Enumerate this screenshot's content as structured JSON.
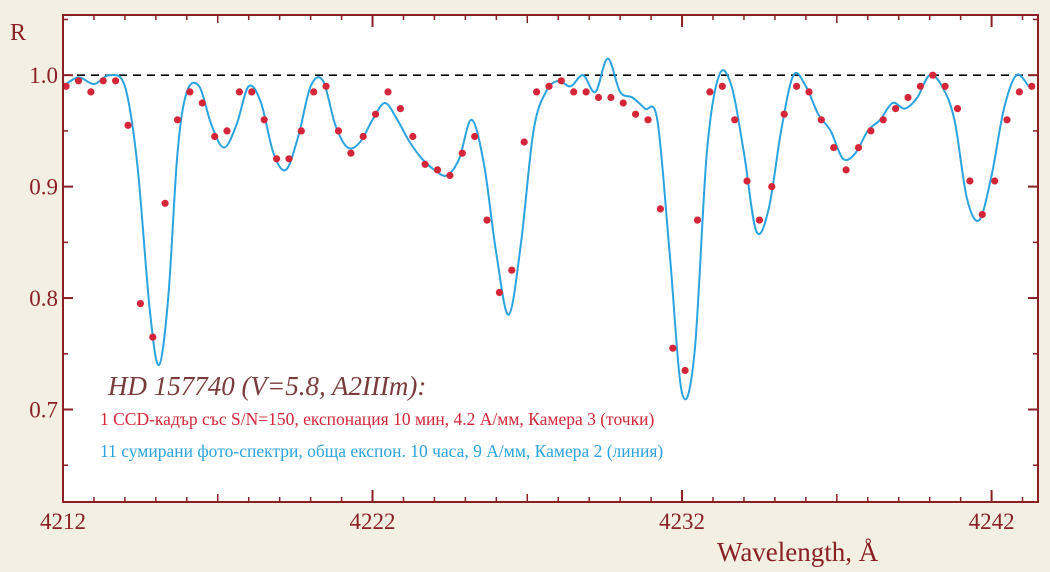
{
  "chart_data": {
    "type": "line",
    "title": "HD 157740 (V=5.8, A2IIIm):",
    "ylabel": "R",
    "xlabel": "Wavelength, Å",
    "xlim": [
      4212,
      4243.5
    ],
    "ylim": [
      0.617,
      1.054
    ],
    "reference_line": 1.0,
    "x_ticks": [
      4212,
      4222,
      4232,
      4242
    ],
    "x_tick_labels": [
      "4212",
      "4222",
      "4232",
      "4242"
    ],
    "y_ticks": [
      0.7,
      0.8,
      0.9,
      1.0
    ],
    "y_tick_labels": [
      "0.7",
      "0.8",
      "0.9",
      "1.0"
    ],
    "grid": false,
    "legend_position": "bottom-left",
    "series": [
      {
        "name": "1 CCD-кадър със S/N=150, експонация 10 мин, 4.2 А/мм, Камера 3 (точки)",
        "style": "points",
        "color": "#d42638",
        "x": [
          4212.1,
          4212.5,
          4212.9,
          4213.3,
          4213.7,
          4214.1,
          4214.5,
          4214.9,
          4215.3,
          4215.7,
          4216.1,
          4216.5,
          4216.9,
          4217.3,
          4217.7,
          4218.1,
          4218.5,
          4218.9,
          4219.3,
          4219.7,
          4220.1,
          4220.5,
          4220.9,
          4221.3,
          4221.7,
          4222.1,
          4222.5,
          4222.9,
          4223.3,
          4223.7,
          4224.1,
          4224.5,
          4224.9,
          4225.3,
          4225.7,
          4226.1,
          4226.5,
          4226.9,
          4227.3,
          4227.7,
          4228.1,
          4228.5,
          4228.9,
          4229.3,
          4229.7,
          4230.1,
          4230.5,
          4230.9,
          4231.3,
          4231.7,
          4232.1,
          4232.5,
          4232.9,
          4233.3,
          4233.7,
          4234.1,
          4234.5,
          4234.9,
          4235.3,
          4235.7,
          4236.1,
          4236.5,
          4236.9,
          4237.3,
          4237.7,
          4238.1,
          4238.5,
          4238.9,
          4239.3,
          4239.7,
          4240.1,
          4240.5,
          4240.9,
          4241.3,
          4241.7,
          4242.1,
          4242.5,
          4242.9,
          4243.3
        ],
        "y": [
          0.99,
          0.995,
          0.985,
          0.995,
          0.995,
          0.955,
          0.795,
          0.765,
          0.885,
          0.96,
          0.985,
          0.975,
          0.945,
          0.95,
          0.985,
          0.985,
          0.96,
          0.925,
          0.925,
          0.95,
          0.985,
          0.99,
          0.95,
          0.93,
          0.945,
          0.965,
          0.985,
          0.97,
          0.945,
          0.92,
          0.915,
          0.91,
          0.93,
          0.945,
          0.87,
          0.805,
          0.825,
          0.94,
          0.985,
          0.99,
          0.995,
          0.985,
          0.985,
          0.98,
          0.98,
          0.975,
          0.965,
          0.96,
          0.88,
          0.755,
          0.735,
          0.87,
          0.985,
          0.99,
          0.96,
          0.905,
          0.87,
          0.9,
          0.965,
          0.99,
          0.985,
          0.96,
          0.935,
          0.915,
          0.935,
          0.95,
          0.96,
          0.97,
          0.98,
          0.99,
          1.0,
          0.99,
          0.97,
          0.905,
          0.875,
          0.905,
          0.96,
          0.985,
          0.99
        ]
      },
      {
        "name": "11 сумирани фото-спектри, обща експон. 10 часа, 9 А/мм, Камера 2 (линия)",
        "style": "line",
        "color": "#2aa3e0",
        "x": [
          4212.0,
          4212.5,
          4213.0,
          4213.5,
          4214.0,
          4214.4,
          4214.8,
          4215.1,
          4215.4,
          4215.7,
          4216.0,
          4216.4,
          4216.8,
          4217.2,
          4217.6,
          4218.0,
          4218.4,
          4218.8,
          4219.2,
          4219.6,
          4220.0,
          4220.4,
          4220.8,
          4221.2,
          4221.6,
          4222.0,
          4222.4,
          4222.8,
          4223.2,
          4223.6,
          4224.0,
          4224.4,
          4224.8,
          4225.2,
          4225.6,
          4226.0,
          4226.4,
          4226.8,
          4227.2,
          4227.6,
          4228.0,
          4228.4,
          4228.8,
          4229.2,
          4229.6,
          4230.0,
          4230.4,
          4230.8,
          4231.2,
          4231.6,
          4232.0,
          4232.4,
          4232.8,
          4233.2,
          4233.6,
          4234.0,
          4234.4,
          4234.8,
          4235.2,
          4235.6,
          4236.0,
          4236.4,
          4236.8,
          4237.2,
          4237.6,
          4238.0,
          4238.4,
          4238.8,
          4239.2,
          4239.6,
          4240.0,
          4240.4,
          4240.8,
          4241.2,
          4241.6,
          4242.0,
          4242.4,
          4242.8,
          4243.2
        ],
        "y": [
          0.99,
          0.998,
          0.992,
          1.0,
          0.99,
          0.92,
          0.79,
          0.74,
          0.8,
          0.93,
          0.985,
          0.99,
          0.955,
          0.935,
          0.955,
          0.99,
          0.975,
          0.93,
          0.915,
          0.945,
          0.99,
          0.995,
          0.955,
          0.935,
          0.94,
          0.96,
          0.975,
          0.96,
          0.94,
          0.925,
          0.915,
          0.91,
          0.925,
          0.96,
          0.92,
          0.84,
          0.785,
          0.85,
          0.95,
          0.985,
          0.995,
          0.99,
          1.0,
          0.985,
          1.015,
          0.985,
          0.98,
          0.97,
          0.96,
          0.84,
          0.715,
          0.75,
          0.93,
          1.0,
          0.99,
          0.93,
          0.86,
          0.88,
          0.95,
          1.0,
          0.99,
          0.965,
          0.95,
          0.925,
          0.93,
          0.95,
          0.96,
          0.975,
          0.97,
          0.98,
          1.0,
          0.99,
          0.96,
          0.89,
          0.87,
          0.91,
          0.97,
          1.0,
          0.99
        ]
      }
    ]
  }
}
